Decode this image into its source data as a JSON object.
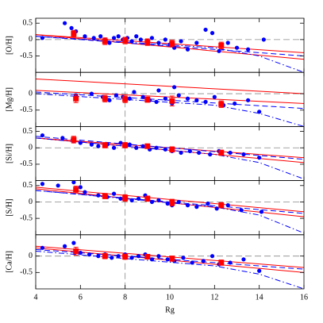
{
  "chart_data": [
    {
      "type": "scatter",
      "ylabel": "[O/H]",
      "xlim": [
        4,
        16
      ],
      "xticks": [
        4,
        6,
        8,
        10,
        12,
        14,
        16
      ],
      "ylim": [
        -1,
        0.65
      ],
      "yticks": [
        -0.5,
        0,
        0.5
      ],
      "hline": 0,
      "vline": 8,
      "points": {
        "color": "#0000ff",
        "x": [
          4.3,
          5.3,
          5.6,
          5.8,
          6.2,
          6.6,
          6.9,
          7.1,
          7.3,
          7.5,
          7.7,
          7.9,
          8.1,
          8.3,
          8.5,
          8.7,
          9.0,
          9.2,
          9.5,
          9.8,
          10.0,
          10.2,
          10.5,
          10.8,
          11.2,
          11.6,
          11.9,
          12.2,
          12.6,
          13.0,
          13.5,
          14.2
        ],
        "y": [
          0.05,
          0.5,
          0.35,
          0.25,
          0.1,
          0.05,
          0.1,
          0.0,
          -0.1,
          0.05,
          0.1,
          0.0,
          0.05,
          -0.05,
          0.1,
          0.0,
          -0.05,
          0.05,
          -0.1,
          0.0,
          -0.15,
          -0.25,
          -0.05,
          -0.3,
          -0.1,
          0.3,
          0.2,
          -0.35,
          -0.1,
          -0.25,
          -0.3,
          0.0
        ]
      },
      "means": {
        "color": "#ff0000",
        "x": [
          5.7,
          7.1,
          8.0,
          9.0,
          10.1,
          12.3
        ],
        "y": [
          0.18,
          -0.05,
          -0.03,
          -0.08,
          -0.12,
          -0.18
        ],
        "err": [
          0.1,
          0.1,
          0.1,
          0.1,
          0.1,
          0.1
        ]
      },
      "lines": [
        {
          "color": "#ff0000",
          "style": "solid",
          "x": [
            4,
            16
          ],
          "values": [
            0.15,
            -0.4
          ]
        },
        {
          "color": "#ff0000",
          "style": "solid",
          "x": [
            4,
            16
          ],
          "values": [
            0.15,
            -0.6
          ]
        },
        {
          "color": "#0000ff",
          "style": "dashed",
          "x": [
            4,
            16
          ],
          "values": [
            0.1,
            -0.5
          ]
        },
        {
          "color": "#0000ff",
          "style": "dashdot",
          "x": [
            4,
            12,
            14,
            16
          ],
          "values": [
            0.1,
            -0.25,
            -0.5,
            -1.0
          ]
        }
      ]
    },
    {
      "type": "scatter",
      "ylabel": "[Mg/H]",
      "xlim": [
        4,
        16
      ],
      "xticks": [
        4,
        6,
        8,
        10,
        12,
        14,
        16
      ],
      "ylim": [
        -1,
        0.65
      ],
      "yticks": [
        -0.5,
        0
      ],
      "hline": 0,
      "vline": 8,
      "points": {
        "color": "#0000ff",
        "x": [
          5.8,
          6.5,
          7.0,
          7.3,
          7.6,
          7.9,
          8.2,
          8.4,
          8.8,
          9.1,
          9.4,
          9.5,
          9.8,
          10.1,
          10.2,
          10.4,
          10.8,
          11.2,
          11.6,
          12.0,
          12.4,
          12.9,
          13.5,
          14.0
        ],
        "y": [
          -0.05,
          0.0,
          -0.1,
          -0.2,
          -0.05,
          -0.1,
          -0.15,
          0.05,
          -0.1,
          -0.2,
          -0.25,
          0.1,
          -0.15,
          -0.3,
          0.2,
          -0.05,
          -0.15,
          -0.2,
          -0.25,
          -0.1,
          -0.35,
          -0.3,
          -0.2,
          -0.55
        ]
      },
      "means": {
        "color": "#ff0000",
        "x": [
          5.8,
          7.1,
          8.0,
          9.0,
          10.1,
          12.3
        ],
        "y": [
          -0.15,
          -0.15,
          -0.17,
          -0.18,
          -0.22,
          -0.32
        ],
        "err": [
          0.12,
          0.1,
          0.1,
          0.08,
          0.15,
          0.1
        ]
      },
      "lines": [
        {
          "color": "#ff0000",
          "style": "solid",
          "x": [
            4,
            16
          ],
          "values": [
            0.45,
            0.0
          ]
        },
        {
          "color": "#ff0000",
          "style": "solid",
          "x": [
            4,
            16
          ],
          "values": [
            0.1,
            -0.3
          ]
        },
        {
          "color": "#0000ff",
          "style": "dashed",
          "x": [
            4,
            16
          ],
          "values": [
            0.05,
            -0.45
          ]
        },
        {
          "color": "#0000ff",
          "style": "dashdot",
          "x": [
            4,
            12,
            14,
            16
          ],
          "values": [
            0.0,
            -0.35,
            -0.6,
            -1.0
          ]
        }
      ]
    },
    {
      "type": "scatter",
      "ylabel": "[Si/H]",
      "xlim": [
        4,
        16
      ],
      "xticks": [
        4,
        6,
        8,
        10,
        12,
        14,
        16
      ],
      "ylim": [
        -1,
        0.65
      ],
      "yticks": [
        -0.5,
        0,
        0.5
      ],
      "hline": 0,
      "vline": 8,
      "points": {
        "color": "#0000ff",
        "x": [
          4.3,
          5.2,
          5.7,
          6.0,
          6.5,
          6.8,
          7.2,
          7.5,
          7.8,
          8.0,
          8.2,
          8.5,
          8.8,
          9.1,
          9.4,
          9.8,
          10.1,
          10.5,
          10.9,
          11.3,
          11.8,
          12.2,
          12.7,
          13.3,
          14.0
        ],
        "y": [
          0.38,
          0.3,
          0.2,
          0.15,
          0.1,
          0.05,
          0.1,
          0.0,
          0.15,
          0.05,
          0.1,
          0.0,
          0.05,
          -0.05,
          0.0,
          -0.05,
          -0.1,
          -0.15,
          -0.1,
          -0.15,
          -0.2,
          -0.1,
          -0.15,
          -0.2,
          -0.3
        ]
      },
      "means": {
        "color": "#ff0000",
        "x": [
          5.7,
          7.1,
          8.0,
          9.0,
          10.1,
          12.3
        ],
        "y": [
          0.25,
          0.08,
          0.08,
          0.05,
          -0.05,
          -0.15
        ],
        "err": [
          0.1,
          0.08,
          0.08,
          0.06,
          0.08,
          0.08
        ]
      },
      "lines": [
        {
          "color": "#ff0000",
          "style": "solid",
          "x": [
            4,
            16
          ],
          "values": [
            0.3,
            -0.3
          ]
        },
        {
          "color": "#ff0000",
          "style": "solid",
          "x": [
            4,
            16
          ],
          "values": [
            0.3,
            -0.45
          ]
        },
        {
          "color": "#0000ff",
          "style": "dashed",
          "x": [
            4,
            16
          ],
          "values": [
            0.35,
            -0.35
          ]
        },
        {
          "color": "#0000ff",
          "style": "dashdot",
          "x": [
            4,
            12,
            14,
            16
          ],
          "values": [
            0.3,
            -0.2,
            -0.45,
            -0.95
          ]
        }
      ]
    },
    {
      "type": "scatter",
      "ylabel": "[S/H]",
      "xlim": [
        4,
        16
      ],
      "xticks": [
        4,
        6,
        8,
        10,
        12,
        14,
        16
      ],
      "ylim": [
        -1,
        0.65
      ],
      "yticks": [
        -0.5,
        0,
        0.5
      ],
      "hline": 0,
      "vline": 8,
      "points": {
        "color": "#0000ff",
        "x": [
          4.3,
          5.0,
          5.7,
          6.0,
          6.2,
          6.8,
          7.2,
          7.5,
          7.8,
          8.0,
          8.3,
          8.6,
          8.9,
          9.2,
          9.5,
          9.9,
          10.1,
          10.4,
          10.8,
          11.2,
          11.7,
          12.1,
          12.6,
          13.2,
          14.1
        ],
        "y": [
          0.55,
          0.5,
          0.6,
          0.45,
          0.3,
          0.2,
          0.15,
          0.25,
          0.1,
          0.15,
          0.05,
          0.1,
          0.2,
          0.0,
          0.05,
          -0.05,
          -0.1,
          0.0,
          -0.1,
          -0.15,
          -0.05,
          -0.2,
          -0.1,
          -0.25,
          -0.3
        ]
      },
      "means": {
        "color": "#ff0000",
        "x": [
          5.8,
          7.1,
          8.0,
          9.0,
          10.1,
          12.3
        ],
        "y": [
          0.38,
          0.18,
          0.12,
          0.1,
          -0.02,
          -0.1
        ],
        "err": [
          0.1,
          0.08,
          0.1,
          0.08,
          0.1,
          0.08
        ]
      },
      "lines": [
        {
          "color": "#ff0000",
          "style": "solid",
          "x": [
            4,
            16
          ],
          "values": [
            0.45,
            -0.3
          ]
        },
        {
          "color": "#ff0000",
          "style": "solid",
          "x": [
            4,
            16
          ],
          "values": [
            0.4,
            -0.45
          ]
        },
        {
          "color": "#0000ff",
          "style": "dashed",
          "x": [
            4,
            16
          ],
          "values": [
            0.35,
            -0.35
          ]
        },
        {
          "color": "#0000ff",
          "style": "dashdot",
          "x": [
            4,
            12,
            14,
            16
          ],
          "values": [
            0.35,
            -0.15,
            -0.4,
            -0.95
          ]
        }
      ]
    },
    {
      "type": "scatter",
      "ylabel": "[Ca/H]",
      "xlabel": "Rg",
      "xlim": [
        4,
        16
      ],
      "xticks": [
        4,
        6,
        8,
        10,
        12,
        14,
        16
      ],
      "ylim": [
        -1,
        0.65
      ],
      "yticks": [
        -0.5,
        0
      ],
      "hline": 0,
      "vline": 8,
      "points": {
        "color": "#0000ff",
        "x": [
          4.3,
          5.3,
          5.7,
          6.0,
          6.4,
          6.8,
          7.1,
          7.4,
          7.7,
          8.0,
          8.3,
          8.6,
          8.9,
          9.2,
          9.5,
          9.9,
          10.2,
          10.6,
          11.0,
          11.5,
          11.9,
          12.2,
          12.7,
          13.3,
          14.0
        ],
        "y": [
          0.25,
          0.3,
          0.4,
          0.1,
          0.05,
          0.0,
          0.05,
          -0.05,
          0.0,
          0.05,
          -0.05,
          0.0,
          0.05,
          -0.1,
          0.0,
          -0.1,
          -0.15,
          -0.05,
          -0.2,
          -0.15,
          0.0,
          -0.25,
          -0.2,
          -0.1,
          -0.45
        ]
      },
      "means": {
        "color": "#ff0000",
        "x": [
          5.8,
          7.1,
          8.0,
          9.0,
          10.1,
          12.3
        ],
        "y": [
          0.15,
          0.0,
          -0.02,
          -0.02,
          -0.08,
          -0.2
        ],
        "err": [
          0.12,
          0.08,
          0.08,
          0.06,
          0.08,
          0.08
        ]
      },
      "lines": [
        {
          "color": "#ff0000",
          "style": "solid",
          "x": [
            4,
            16
          ],
          "values": [
            0.3,
            -0.35
          ]
        },
        {
          "color": "#ff0000",
          "style": "solid",
          "x": [
            4,
            16
          ],
          "values": [
            0.25,
            -0.5
          ]
        },
        {
          "color": "#0000ff",
          "style": "dashed",
          "x": [
            4,
            16
          ],
          "values": [
            0.2,
            -0.4
          ]
        },
        {
          "color": "#0000ff",
          "style": "dashdot",
          "x": [
            4,
            12,
            14,
            16
          ],
          "values": [
            0.15,
            -0.3,
            -0.55,
            -1.0
          ]
        }
      ]
    }
  ]
}
